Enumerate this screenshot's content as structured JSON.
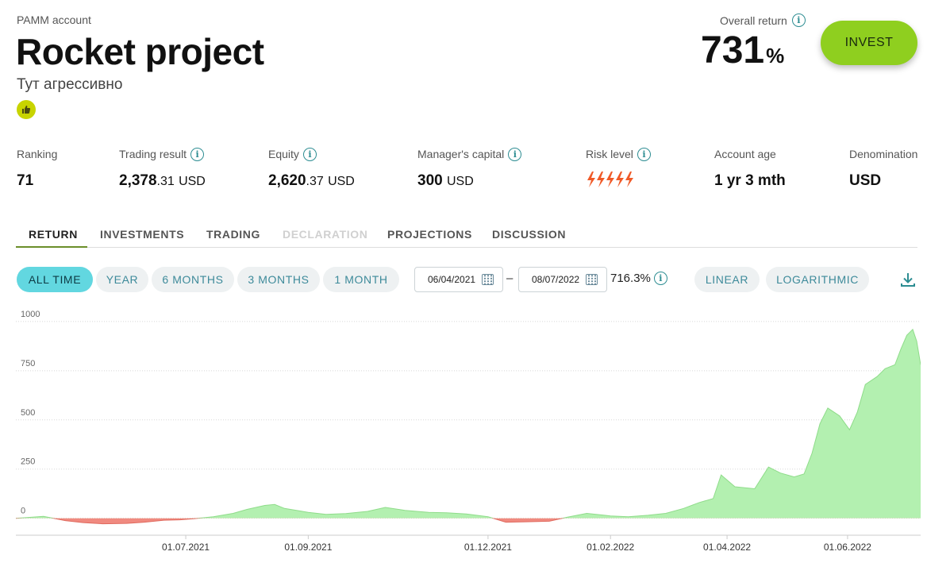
{
  "header": {
    "label": "PAMM account",
    "title": "Rocket project",
    "subtitle": "Тут агрессивно",
    "badge_icon": "thumbs-up-icon"
  },
  "overall_return": {
    "label": "Overall return",
    "value": "731",
    "unit": "%"
  },
  "invest_button": "INVEST",
  "stats": {
    "ranking": {
      "label": "Ranking",
      "value": "71"
    },
    "trading_result": {
      "label": "Trading result",
      "int": "2,378",
      "dec": ".31",
      "currency": "USD"
    },
    "equity": {
      "label": "Equity",
      "int": "2,620",
      "dec": ".37",
      "currency": "USD"
    },
    "managers_capital": {
      "label": "Manager's capital",
      "value": "300",
      "currency": "USD"
    },
    "risk_level": {
      "label": "Risk level",
      "value": 5,
      "max": 5,
      "color": "#f05a28"
    },
    "account_age": {
      "label": "Account age",
      "value": "1 yr 3 mth"
    },
    "denomination": {
      "label": "Denomination",
      "value": "USD"
    }
  },
  "tabs": [
    {
      "label": "RETURN",
      "state": "active"
    },
    {
      "label": "INVESTMENTS",
      "state": "normal"
    },
    {
      "label": "TRADING",
      "state": "normal"
    },
    {
      "label": "DECLARATION",
      "state": "disabled"
    },
    {
      "label": "PROJECTIONS",
      "state": "normal"
    },
    {
      "label": "DISCUSSION",
      "state": "normal"
    }
  ],
  "periods": [
    "ALL TIME",
    "YEAR",
    "6 MONTHS",
    "3 MONTHS",
    "1 MONTH"
  ],
  "active_period": "ALL TIME",
  "date_range": {
    "from": "06/04/2021",
    "to": "08/07/2022",
    "change": "716.3%"
  },
  "scales": [
    "LINEAR",
    "LOGARITHMIC"
  ],
  "colors": {
    "accent": "#62d7e0",
    "invest": "#8fcf1f",
    "positive": "#b3f0b0",
    "negative": "#f08a80"
  },
  "chart_data": {
    "type": "area",
    "y_ticks": [
      "1000",
      "750",
      "500",
      "250",
      "0"
    ],
    "ylim": [
      -70,
      1060
    ],
    "x_tick_labels": [
      "01.07.2021",
      "01.09.2021",
      "01.12.2021",
      "01.02.2022",
      "01.04.2022",
      "01.06.2022"
    ],
    "x_tick_dates": [
      "2021-07-01",
      "2021-09-01",
      "2021-12-01",
      "2022-02-01",
      "2022-04-01",
      "2022-06-01"
    ],
    "xlim": [
      "2021-04-06",
      "2022-07-08"
    ],
    "grid": true,
    "series": [
      {
        "x": [
          "2021-04-06",
          "2021-04-20",
          "2021-05-01",
          "2021-05-10",
          "2021-05-20",
          "2021-06-01",
          "2021-06-10",
          "2021-06-20",
          "2021-06-28",
          "2021-07-05",
          "2021-07-15",
          "2021-07-25",
          "2021-08-01",
          "2021-08-10",
          "2021-08-15",
          "2021-08-20",
          "2021-09-01",
          "2021-09-10",
          "2021-09-20",
          "2021-10-01",
          "2021-10-10",
          "2021-10-20",
          "2021-11-01",
          "2021-11-10",
          "2021-11-20",
          "2021-12-01",
          "2021-12-10",
          "2021-12-20",
          "2022-01-01",
          "2022-01-10",
          "2022-01-20",
          "2022-02-01",
          "2022-02-10",
          "2022-02-20",
          "2022-03-01",
          "2022-03-10",
          "2022-03-18",
          "2022-03-25",
          "2022-03-29",
          "2022-04-05",
          "2022-04-15",
          "2022-04-22",
          "2022-04-28",
          "2022-05-05",
          "2022-05-10",
          "2022-05-14",
          "2022-05-18",
          "2022-05-22",
          "2022-05-28",
          "2022-06-02",
          "2022-06-06",
          "2022-06-10",
          "2022-06-16",
          "2022-06-20",
          "2022-06-25",
          "2022-06-28",
          "2022-07-01",
          "2022-07-04",
          "2022-07-06",
          "2022-07-08"
        ],
        "y": [
          0,
          10,
          -12,
          -22,
          -28,
          -26,
          -20,
          -10,
          -8,
          -2,
          8,
          25,
          45,
          65,
          70,
          50,
          30,
          20,
          24,
          35,
          55,
          40,
          30,
          28,
          22,
          8,
          -20,
          -18,
          -15,
          5,
          25,
          12,
          8,
          15,
          25,
          50,
          80,
          100,
          220,
          160,
          150,
          260,
          230,
          210,
          225,
          330,
          480,
          560,
          520,
          450,
          540,
          680,
          720,
          760,
          780,
          860,
          930,
          960,
          900,
          780
        ]
      }
    ]
  }
}
